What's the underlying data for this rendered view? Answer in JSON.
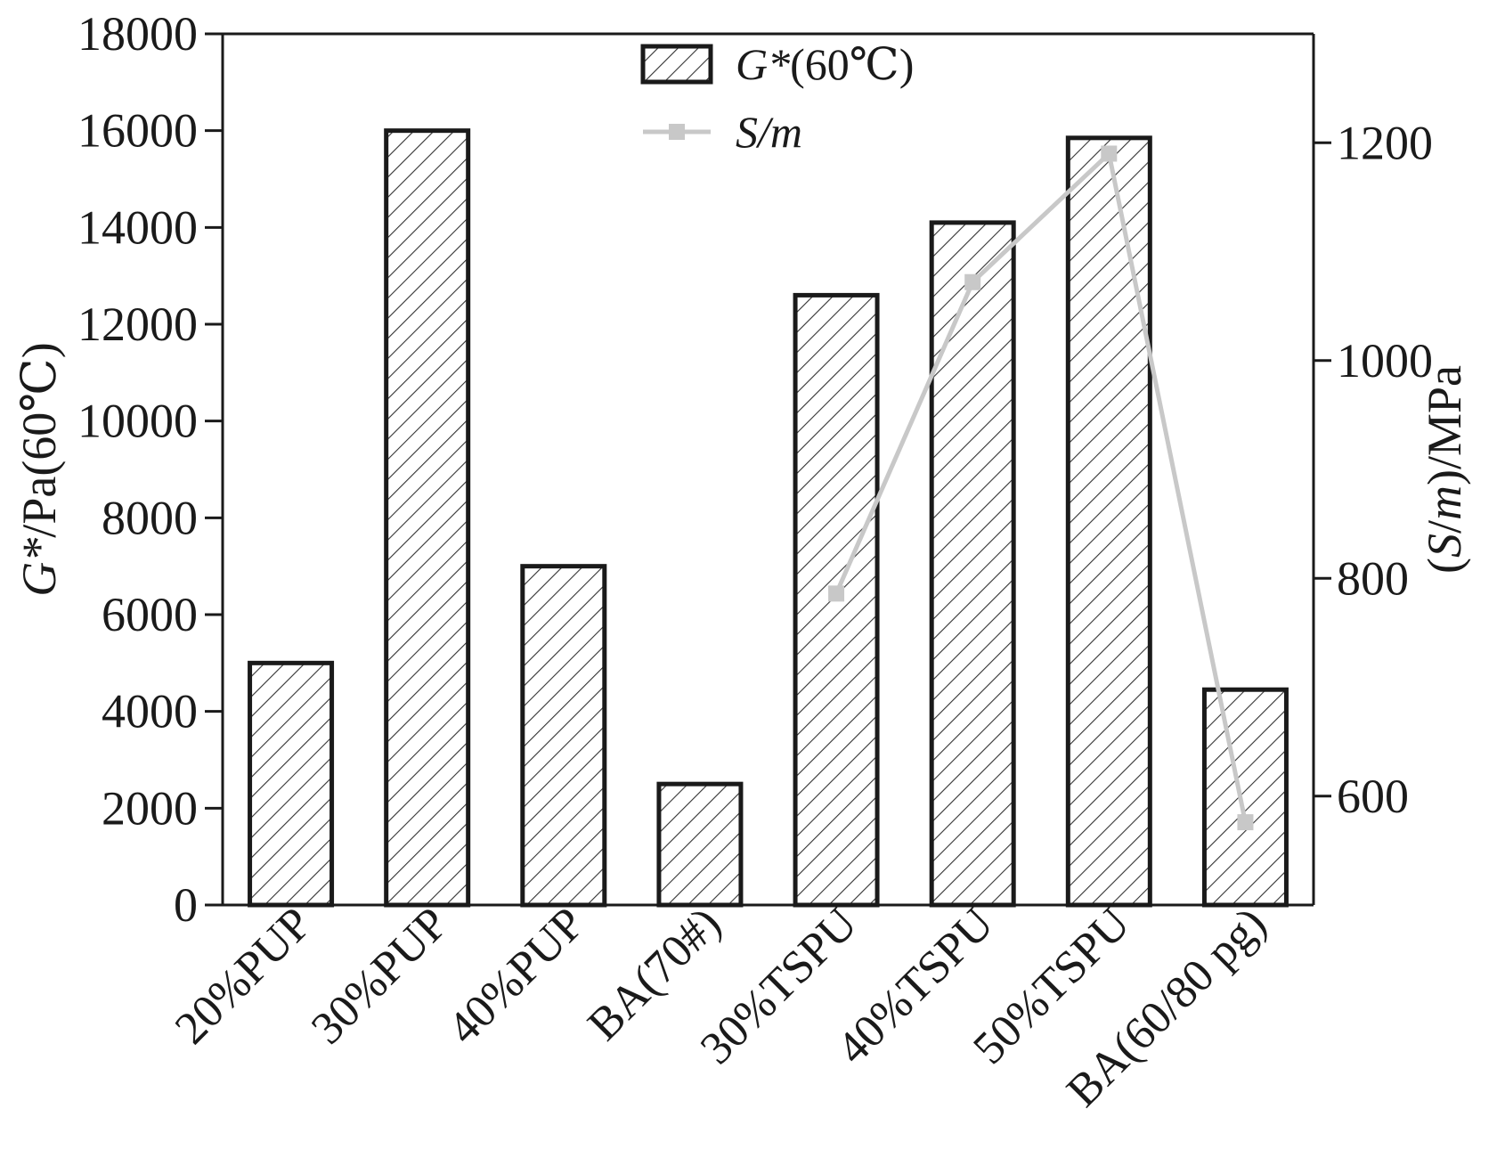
{
  "chart_data": {
    "type": "bar",
    "categories": [
      "20%PUP",
      "30%PUP",
      "40%PUP",
      "BA(70#)",
      "30%TSPU",
      "40%TSPU",
      "50%TSPU",
      "BA(60/80 pg)"
    ],
    "series": [
      {
        "name": "G*(60℃)",
        "axis": "left",
        "type": "bar",
        "values": [
          5000,
          16000,
          7000,
          2500,
          12600,
          14100,
          15850,
          4450
        ]
      },
      {
        "name": "S/m",
        "axis": "right",
        "type": "line",
        "values": [
          null,
          null,
          null,
          null,
          786,
          1072,
          1190,
          576
        ]
      }
    ],
    "ylabel": "G*/Pa(60℃)",
    "ylabel_italic_part": "G*",
    "ylabel_rest": "/Pa(60℃)",
    "y2label": "(S/m)/MPa",
    "ylim": [
      0,
      18000
    ],
    "y2lim": [
      500,
      1300
    ],
    "yticks": [
      0,
      2000,
      4000,
      6000,
      8000,
      10000,
      12000,
      14000,
      16000,
      18000
    ],
    "y2ticks": [
      600,
      800,
      1000,
      1200
    ],
    "legend_position": "top-center",
    "grid": false,
    "colors": {
      "bar_edge": "#1a1a1a",
      "bar_hatch": "#333333",
      "line": "#c8c8c8",
      "marker": "#c8c8c8",
      "axis": "#1a1a1a"
    }
  }
}
